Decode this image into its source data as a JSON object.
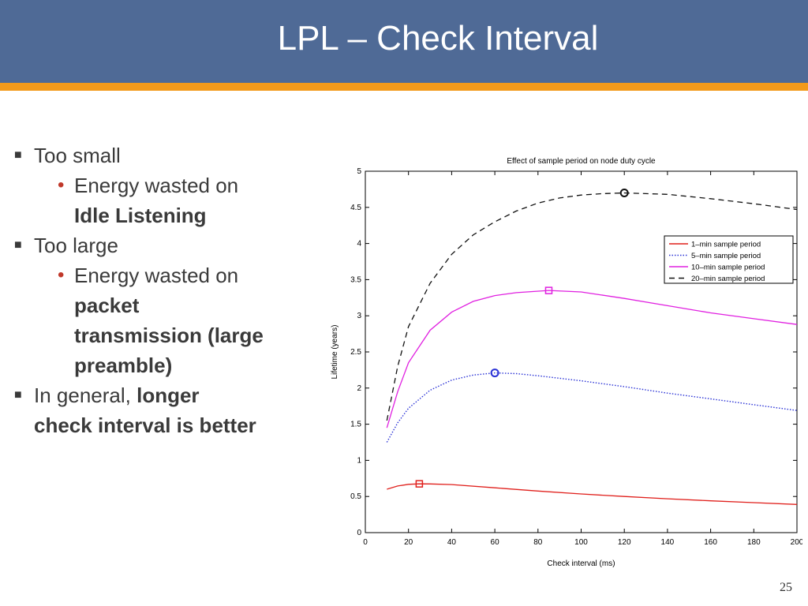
{
  "slide": {
    "title": "LPL – Check Interval",
    "page_number": "25",
    "colors": {
      "header": "#4f6a96",
      "stripe": "#f39a1b",
      "bullet_red": "#c0392b"
    }
  },
  "bullets": {
    "b1": {
      "text": "Too small"
    },
    "b1_sub": {
      "text": "Energy wasted on",
      "bold": "Idle Listening"
    },
    "b2": {
      "text": "Too large"
    },
    "b2_sub": {
      "text": "Energy wasted on",
      "bold_1": "packet",
      "bold_2": "transmission (large",
      "bold_3": "preamble)"
    },
    "b3": {
      "text": "In general, ",
      "bold_1": "longer",
      "bold_2": "check interval is better"
    }
  },
  "chart_data": {
    "type": "line",
    "title": "Effect of sample period on node duty cycle",
    "xlabel": "Check interval (ms)",
    "ylabel": "Lifetime (years)",
    "xlim": [
      0,
      200
    ],
    "ylim": [
      0,
      5
    ],
    "xticks": [
      0,
      20,
      40,
      60,
      80,
      100,
      120,
      140,
      160,
      180,
      200
    ],
    "yticks": [
      0,
      0.5,
      1,
      1.5,
      2,
      2.5,
      3,
      3.5,
      4,
      4.5,
      5
    ],
    "ytick_labels": [
      "0",
      "0.5",
      "1",
      "1.5",
      "2",
      "2.5",
      "3",
      "3.5",
      "4",
      "4.5",
      "5"
    ],
    "grid": false,
    "legend_position": "top-right",
    "series": [
      {
        "name": "1–min sample period",
        "color": "#e0201c",
        "dash": "solid",
        "marker": "square",
        "x": [
          10,
          15,
          20,
          25,
          30,
          40,
          60,
          80,
          100,
          120,
          140,
          160,
          180,
          200
        ],
        "y": [
          0.6,
          0.645,
          0.668,
          0.675,
          0.674,
          0.665,
          0.62,
          0.575,
          0.535,
          0.5,
          0.468,
          0.44,
          0.415,
          0.39
        ],
        "optimum": {
          "x": 25,
          "y": 0.675
        }
      },
      {
        "name": "5–min sample period",
        "color": "#2b33d6",
        "dash": "dotted",
        "marker": "circle",
        "x": [
          10,
          15,
          20,
          30,
          40,
          50,
          60,
          70,
          80,
          100,
          120,
          140,
          160,
          180,
          200
        ],
        "y": [
          1.25,
          1.52,
          1.72,
          1.97,
          2.11,
          2.18,
          2.21,
          2.2,
          2.17,
          2.1,
          2.02,
          1.93,
          1.85,
          1.77,
          1.69
        ],
        "optimum": {
          "x": 60,
          "y": 2.21
        }
      },
      {
        "name": "10–min sample period",
        "color": "#e020e0",
        "dash": "solid",
        "marker": "square",
        "x": [
          10,
          15,
          20,
          30,
          40,
          50,
          60,
          70,
          85,
          100,
          120,
          140,
          160,
          180,
          200
        ],
        "y": [
          1.45,
          1.95,
          2.35,
          2.8,
          3.05,
          3.2,
          3.28,
          3.32,
          3.35,
          3.33,
          3.24,
          3.14,
          3.04,
          2.96,
          2.88
        ],
        "optimum": {
          "x": 85,
          "y": 3.35
        }
      },
      {
        "name": "20–min sample period",
        "color": "#111111",
        "dash": "dashed",
        "marker": "circle",
        "x": [
          10,
          15,
          20,
          30,
          40,
          50,
          60,
          70,
          80,
          90,
          100,
          110,
          120,
          140,
          160,
          180,
          200
        ],
        "y": [
          1.55,
          2.3,
          2.85,
          3.45,
          3.85,
          4.12,
          4.3,
          4.45,
          4.56,
          4.63,
          4.67,
          4.69,
          4.7,
          4.68,
          4.62,
          4.55,
          4.47
        ],
        "optimum": {
          "x": 120,
          "y": 4.7
        }
      }
    ]
  }
}
